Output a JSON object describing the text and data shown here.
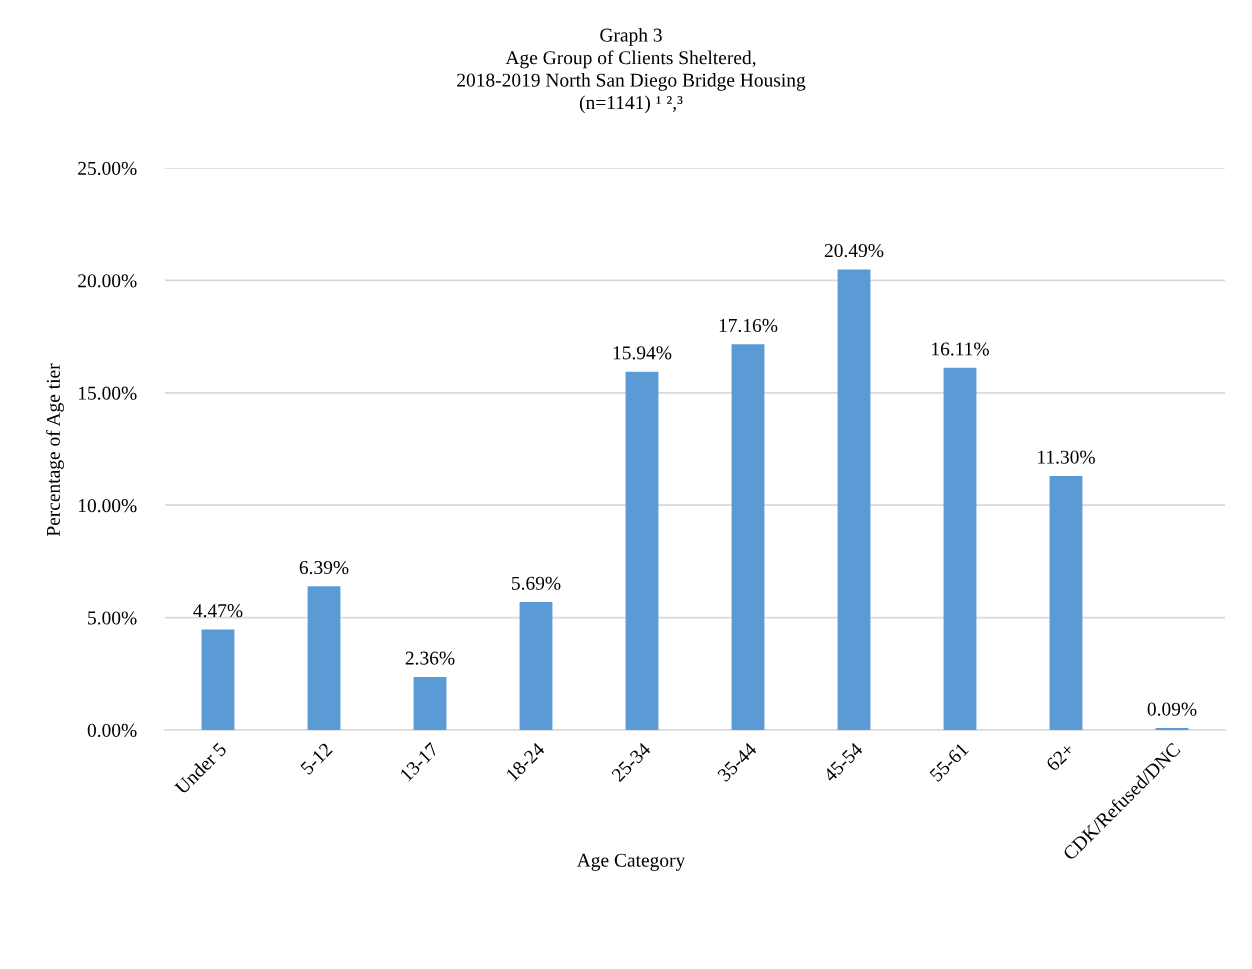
{
  "chart_data": {
    "type": "bar",
    "title": "Graph 3\nAge Group of Clients Sheltered,\n2018-2019 North San Diego Bridge Housing\n(n=1141) ¹ ²,³",
    "xlabel": "Age Category",
    "ylabel": "Percentage of Age tier",
    "categories": [
      "Under 5",
      "5-12",
      "13-17",
      "18-24",
      "25-34",
      "35-44",
      "45-54",
      "55-61",
      "62+",
      "CDK/Refused/DNC"
    ],
    "values": [
      4.47,
      6.39,
      2.36,
      5.69,
      15.94,
      17.16,
      20.49,
      16.11,
      11.3,
      0.09
    ],
    "value_labels": [
      "4.47%",
      "6.39%",
      "2.36%",
      "5.69%",
      "15.94%",
      "17.16%",
      "20.49%",
      "16.11%",
      "11.30%",
      "0.09%"
    ],
    "color": "#5b9bd5",
    "ylim": [
      0,
      25
    ],
    "yticks": [
      {
        "value": 0,
        "label": "0.00%"
      },
      {
        "value": 5,
        "label": "5.00%"
      },
      {
        "value": 10,
        "label": "10.00%"
      },
      {
        "value": 15,
        "label": "15.00%"
      },
      {
        "value": 20,
        "label": "20.00%"
      },
      {
        "value": 25,
        "label": "25.00%"
      }
    ],
    "grid": "y",
    "legend": false
  }
}
